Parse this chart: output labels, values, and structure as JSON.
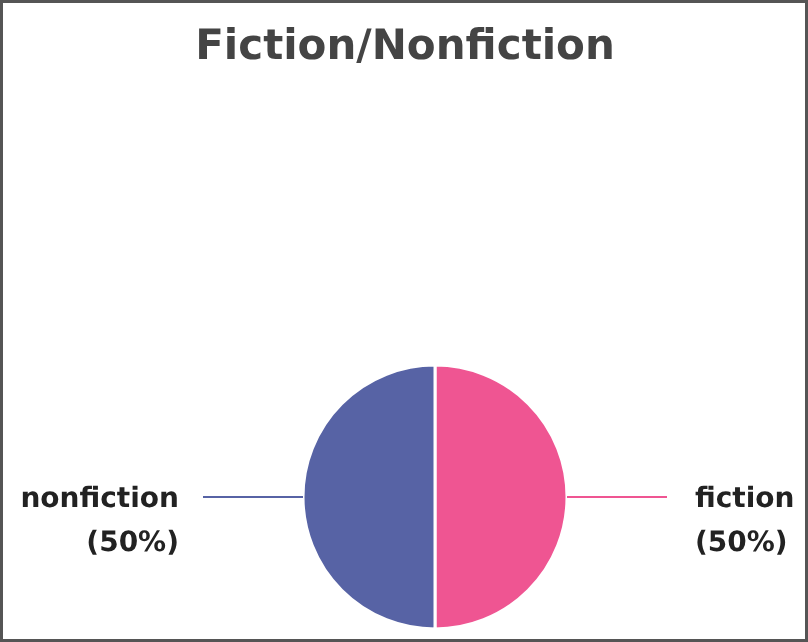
{
  "chart_data": {
    "type": "pie",
    "title": "Fiction/Nonfiction",
    "categories": [
      "fiction",
      "nonfiction"
    ],
    "values": [
      50,
      50
    ],
    "colors": [
      "#ef5592",
      "#5763a5"
    ],
    "value_labels": [
      "(50%)",
      "(50%)"
    ]
  }
}
